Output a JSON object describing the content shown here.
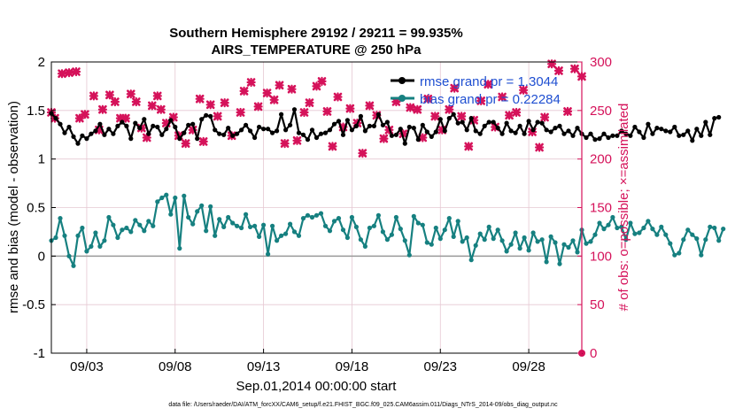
{
  "chart_data": {
    "type": "line",
    "title": "Southern Hemisphere 29192 / 29211 = 99.935%",
    "subtitle": "AIRS_TEMPERATURE @ 250 hPa",
    "xlabel": "Sep.01,2014 00:00:00 start",
    "ylabel_left": "rmse and bias (model - observation)",
    "ylabel_right": "# of obs: o=possible; ×=assimilated",
    "footer": "data file: /Users/raeder/DAI/ATM_forcXX/CAM6_setup/f.e21.FHIST_BGC.f09_025.CAM6assim.011/Diags_NTrS_2014-09/obs_diag_output.nc",
    "xlim": [
      1,
      31
    ],
    "ylim_left": [
      -1,
      2
    ],
    "ylim_right": [
      0,
      300
    ],
    "x_ticks": [
      3,
      8,
      13,
      18,
      23,
      28
    ],
    "x_tick_labels": [
      "09/03",
      "09/08",
      "09/13",
      "09/18",
      "09/23",
      "09/28"
    ],
    "yleft_ticks": [
      -1,
      -0.5,
      0,
      0.5,
      1,
      1.5,
      2
    ],
    "yleft_tick_labels": [
      "-1",
      "-0.5",
      "0",
      "0.5",
      "1",
      "1.5",
      "2"
    ],
    "yright_ticks": [
      0,
      50,
      100,
      150,
      200,
      250,
      300
    ],
    "yright_tick_labels": [
      "0",
      "50",
      "100",
      "150",
      "200",
      "250",
      "300"
    ],
    "grid": true,
    "legend_position": "top-right",
    "colors": {
      "rmse": "#000000",
      "bias": "#168080",
      "obs": "#d5125a",
      "zero_line": "#9a9a9a",
      "grid": "#e6c8d2",
      "legend_text": "#1f4fd1"
    },
    "series": [
      {
        "name": "rmse grand pr = 1.3044",
        "legend_label": "rmse grand pr = 1.3044",
        "axis": "left",
        "x_start": 1.0,
        "x_step": 0.25,
        "values": [
          1.47,
          1.42,
          1.36,
          1.27,
          1.33,
          1.23,
          1.16,
          1.24,
          1.21,
          1.26,
          1.29,
          1.36,
          1.25,
          1.31,
          1.26,
          1.34,
          1.38,
          1.34,
          1.21,
          1.37,
          1.32,
          1.41,
          1.26,
          1.34,
          1.33,
          1.25,
          1.31,
          1.4,
          1.33,
          1.21,
          1.27,
          1.35,
          1.36,
          1.21,
          1.41,
          1.45,
          1.44,
          1.3,
          1.26,
          1.25,
          1.32,
          1.24,
          1.26,
          1.3,
          1.35,
          1.29,
          1.22,
          1.33,
          1.31,
          1.31,
          1.27,
          1.29,
          1.46,
          1.3,
          1.35,
          1.51,
          1.27,
          1.25,
          1.2,
          1.3,
          1.22,
          1.26,
          1.27,
          1.3,
          1.36,
          1.39,
          1.25,
          1.4,
          1.3,
          1.34,
          1.44,
          1.29,
          1.34,
          1.34,
          1.46,
          1.35,
          1.38,
          1.24,
          1.25,
          1.31,
          1.16,
          1.33,
          1.32,
          1.2,
          1.35,
          1.28,
          1.23,
          1.28,
          1.41,
          1.29,
          1.42,
          1.46,
          1.37,
          1.38,
          1.3,
          1.42,
          1.29,
          1.26,
          1.34,
          1.38,
          1.38,
          1.32,
          1.26,
          1.37,
          1.29,
          1.27,
          1.34,
          1.26,
          1.39,
          1.3,
          1.38,
          1.37,
          1.3,
          1.28,
          1.32,
          1.34,
          1.26,
          1.29,
          1.24,
          1.32,
          1.26,
          1.22,
          1.26,
          1.2,
          1.21,
          1.26,
          1.22,
          1.24,
          1.24,
          1.29,
          1.26,
          1.24,
          1.33,
          1.28,
          1.22,
          1.36,
          1.26,
          1.32,
          1.31,
          1.29,
          1.28,
          1.33,
          1.24,
          1.25,
          1.29,
          1.19,
          1.31,
          1.24,
          1.38,
          1.25,
          1.42,
          1.43
        ]
      },
      {
        "name": "bias grand pr = 0.22284",
        "legend_label": "bias grand pr = 0.22284",
        "axis": "left",
        "x_start": 1.0,
        "x_step": 0.25,
        "values": [
          0.16,
          0.19,
          0.39,
          0.21,
          0.0,
          -0.1,
          0.21,
          0.29,
          0.05,
          0.1,
          0.24,
          0.1,
          0.16,
          0.4,
          0.32,
          0.19,
          0.27,
          0.29,
          0.25,
          0.37,
          0.32,
          0.26,
          0.36,
          0.31,
          0.56,
          0.6,
          0.63,
          0.43,
          0.6,
          0.08,
          0.62,
          0.4,
          0.33,
          0.46,
          0.52,
          0.26,
          0.51,
          0.21,
          0.38,
          0.3,
          0.4,
          0.34,
          0.31,
          0.29,
          0.43,
          0.3,
          0.31,
          0.2,
          0.32,
          0.02,
          0.31,
          0.16,
          0.21,
          0.23,
          0.33,
          0.25,
          0.21,
          0.39,
          0.42,
          0.4,
          0.42,
          0.44,
          0.31,
          0.26,
          0.36,
          0.39,
          0.27,
          0.19,
          0.4,
          0.3,
          0.17,
          0.1,
          0.29,
          0.31,
          0.42,
          0.25,
          0.17,
          0.22,
          0.4,
          0.28,
          0.16,
          0.01,
          0.41,
          0.34,
          0.32,
          0.14,
          0.12,
          0.29,
          0.18,
          0.27,
          0.39,
          0.2,
          0.36,
          0.15,
          0.19,
          -0.04,
          0.11,
          0.23,
          0.17,
          0.3,
          0.18,
          0.27,
          0.16,
          0.05,
          0.12,
          0.24,
          0.08,
          0.19,
          0.06,
          0.24,
          0.15,
          0.17,
          -0.06,
          0.2,
          0.14,
          -0.08,
          0.12,
          0.09,
          0.16,
          0.04,
          0.27,
          0.13,
          0.15,
          0.22,
          0.34,
          0.28,
          0.32,
          0.4,
          0.29,
          0.3,
          0.17,
          0.34,
          0.23,
          0.24,
          0.29,
          0.36,
          0.28,
          0.22,
          0.3,
          0.22,
          0.13,
          0.01,
          0.03,
          0.17,
          0.27,
          0.22,
          0.18,
          0.01,
          0.17,
          0.3,
          0.29,
          0.16,
          0.28
        ]
      },
      {
        "name": "obs count",
        "axis": "right",
        "marker": "x",
        "x": [
          1.0,
          1.2,
          1.6,
          2.0,
          2.4,
          2.6,
          2.9,
          3.4,
          3.7,
          3.9,
          4.3,
          4.6,
          4.9,
          5.2,
          5.5,
          5.8,
          6.1,
          6.4,
          6.7,
          7.0,
          7.2,
          7.5,
          7.9,
          8.2,
          8.6,
          9.0,
          9.4,
          9.6,
          10.0,
          10.4,
          10.8,
          11.2,
          11.7,
          11.9,
          12.3,
          12.7,
          13.2,
          13.6,
          13.9,
          14.2,
          14.6,
          14.9,
          15.3,
          15.6,
          16.0,
          16.3,
          16.6,
          16.9,
          17.2,
          17.5,
          17.9,
          18.3,
          18.6,
          19.0,
          19.4,
          19.8,
          20.1,
          20.5,
          20.9,
          21.3,
          21.7,
          22.0,
          22.3,
          22.7,
          23.1,
          23.5,
          23.8,
          24.2,
          24.6,
          24.9,
          25.3,
          25.7,
          26.1,
          26.5,
          26.9,
          27.3,
          27.7,
          28.2,
          28.6,
          28.9,
          29.3,
          29.7,
          30.2,
          30.6,
          31.0
        ],
        "values": [
          248,
          242,
          288,
          289,
          290,
          242,
          246,
          265,
          230,
          251,
          266,
          259,
          242,
          242,
          267,
          259,
          232,
          222,
          255,
          265,
          251,
          237,
          243,
          224,
          216,
          230,
          262,
          218,
          256,
          244,
          258,
          224,
          248,
          270,
          279,
          254,
          268,
          261,
          276,
          216,
          272,
          219,
          248,
          258,
          275,
          280,
          249,
          213,
          264,
          233,
          252,
          237,
          206,
          255,
          245,
          221,
          230,
          259,
          226,
          253,
          251,
          222,
          262,
          244,
          230,
          251,
          273,
          244,
          213,
          240,
          260,
          277,
          233,
          264,
          245,
          248,
          271,
          228,
          212,
          243,
          298,
          291,
          249,
          293,
          285
        ]
      }
    ]
  }
}
